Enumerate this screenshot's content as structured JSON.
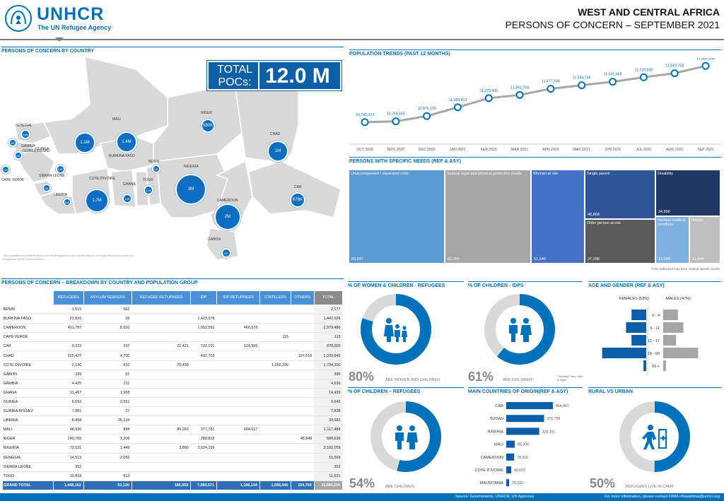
{
  "header": {
    "org_name": "UNHCR",
    "org_tagline": "The UN Refugee Agency",
    "region": "WEST AND CENTRAL AFRICA",
    "subtitle": "PERSONS OF CONCERN – SEPTEMBER 2021"
  },
  "map": {
    "section_title": "PERSONS OF CONCERN BY COUNTRY",
    "total_label": "TOTAL POCs:",
    "total_value": "12.0 M",
    "disclaimer": "The boundaries and names shown and the designations used on this map do not imply official endorsement or acceptance by the United Nations.",
    "countries": [
      {
        "name": "SENEGAL",
        "bubble": "16K"
      },
      {
        "name": "GAMBIA",
        "bubble": "5K"
      },
      {
        "name": "GUINEA BISSAU",
        "bubble": "8K"
      },
      {
        "name": "CAPE VERDE",
        "bubble": "115"
      },
      {
        "name": "GUINEA",
        "bubble": "10K"
      },
      {
        "name": "SIERRA LEONE",
        "bubble": "0K"
      },
      {
        "name": "LIBERIA",
        "bubble": "35K"
      },
      {
        "name": "MALI",
        "bubble": "1.1M"
      },
      {
        "name": "BURKINA FASO",
        "bubble": "1.4M"
      },
      {
        "name": "COTE D'IVOIRE",
        "bubble": "1.7M"
      },
      {
        "name": "GHANA",
        "bubble": "14K"
      },
      {
        "name": "TOGO",
        "bubble": "12K"
      },
      {
        "name": "BENIN",
        "bubble": "2K"
      },
      {
        "name": "NIGER",
        "bubble": "580K"
      },
      {
        "name": "NIGERIA",
        "bubble": "3M"
      },
      {
        "name": "CHAD",
        "bubble": "1M"
      },
      {
        "name": "CAMEROON",
        "bubble": "2M"
      },
      {
        "name": "CAR",
        "bubble": "878K"
      },
      {
        "name": "GABON",
        "bubble": "0K"
      }
    ]
  },
  "trends": {
    "section_title": "POPULATION TRENDS (PAST 12 MONTHS)",
    "chart_data": {
      "type": "line",
      "categories": [
        "OCT 2020",
        "NOV 2020",
        "DEC 2020",
        "JAN 2021",
        "FEB 2021",
        "MAR 2021",
        "APR 2021",
        "MAY 2021",
        "JUN 2021",
        "JUL 2021",
        "AUG 2021",
        "SEP 2021"
      ],
      "values": [
        10742373,
        10759665,
        10876139,
        11069413,
        11270009,
        11341743,
        11477704,
        11554746,
        11631668,
        11729590,
        11819753,
        11980204
      ],
      "labels": [
        "10,742,373",
        "10,759,665",
        "10,876,139",
        "11,069,413",
        "11,270,009",
        "11,341,743",
        "11,477,704",
        "11,554,746",
        "11,631,668",
        "11,729,590",
        "11,819,753",
        "11,980,204"
      ],
      "title": "",
      "xlabel": "",
      "ylabel": "",
      "grid": false
    }
  },
  "specific_needs": {
    "section_title": "PERSONS WITH SPECIFIC NEEDS (REF & ASY)",
    "footnote": "*One individual may have several specific needs",
    "items": [
      {
        "label": "Unaccompanied / separated child",
        "value": "83,947",
        "color": "#5b9bd5"
      },
      {
        "label": "Serious legal and physical protection needs",
        "value": "82,359",
        "color": "#a6a6a6"
      },
      {
        "label": "Woman at risk",
        "value": "51,540",
        "color": "#4472c4"
      },
      {
        "label": "Single parent",
        "value": "40,868",
        "color": "#2e5597"
      },
      {
        "label": "Disability",
        "value": "34,990",
        "color": "#203864"
      },
      {
        "label": "Older person at risk",
        "value": "27,288",
        "color": "#595959"
      },
      {
        "label": "Serious medical condition",
        "value": "13,045",
        "color": "#7fb0e0"
      },
      {
        "label": "Others",
        "value": "11,044",
        "color": "#bfbfbf"
      }
    ]
  },
  "breakdown": {
    "section_title": "PERSONS OF CONCERN – BREAKDOWN BY COUNTRY AND POPULATION GROUP",
    "columns": [
      "REFUGEES",
      "ASYLUM SEEKERS",
      "REFUGEE RETURNEES",
      "IDP",
      "IDP RETURNEES",
      "STATELESS",
      "OTHERS",
      "TOTAL"
    ],
    "rows": [
      [
        "BENIN",
        "1,515",
        "662",
        "",
        "",
        "",
        "",
        "",
        "2,177"
      ],
      [
        "BURKINA FASO",
        "22,810",
        "38",
        "",
        "1,423,378",
        "",
        "",
        "",
        "1,447,026"
      ],
      [
        "CAMEROON",
        "451,787",
        "8,550",
        "",
        "1,052,591",
        "466,578",
        "",
        "",
        "1,979,486"
      ],
      [
        "CAPE VERDE",
        "",
        "",
        "",
        "",
        "",
        "115",
        "",
        "115"
      ],
      [
        "CAR",
        "9,222",
        "297",
        "21,421",
        "722,101",
        "124,959",
        "",
        "",
        "878,000"
      ],
      [
        "CHAD",
        "525,427",
        "4,700",
        "",
        "402,703",
        "",
        "",
        "107,610",
        "1,039,640"
      ],
      [
        "COTE D'IVOIRE",
        "2,130",
        "410",
        "75,430",
        "",
        "",
        "1,656,330",
        "",
        "1,734,300"
      ],
      [
        "GABON",
        "339",
        "51",
        "",
        "",
        "",
        "",
        "",
        "390"
      ],
      [
        "GAMBIA",
        "4,425",
        "211",
        "",
        "",
        "",
        "",
        "",
        "4,636"
      ],
      [
        "GHANA",
        "12,467",
        "1,968",
        "",
        "",
        "",
        "",
        "",
        "14,435"
      ],
      [
        "GUINEA",
        "6,092",
        "3,551",
        "",
        "",
        "",
        "",
        "",
        "9,643"
      ],
      [
        "GUINEA BISSAU",
        "7,801",
        "37",
        "",
        "",
        "",
        "",
        "",
        "7,838"
      ],
      [
        "LIBERIA",
        "8,458",
        "26,124",
        "",
        "",
        "",
        "",
        "",
        "34,582"
      ],
      [
        "MALI",
        "48,930",
        "894",
        "85,262",
        "377,781",
        "604,617",
        "",
        "",
        "1,117,484"
      ],
      [
        "NIGER",
        "249,765",
        "3,206",
        "",
        "280,818",
        "",
        "",
        "46,849",
        "580,638"
      ],
      [
        "NIGERIA",
        "72,531",
        "1,449",
        "3,880",
        "3,024,199",
        "",
        "",
        "",
        "3,102,059"
      ],
      [
        "SENEGAL",
        "14,513",
        "2,056",
        "",
        "",
        "",
        "",
        "",
        "16,569"
      ],
      [
        "SIERRA LEONE",
        "352",
        "",
        "",
        "",
        "",
        "",
        "",
        "352"
      ],
      [
        "TOGO",
        "10,818",
        "813",
        "",
        "",
        "",
        "",
        "",
        "11,631"
      ]
    ],
    "grand_total": [
      "GRAND TOTAL",
      "1,448,162",
      "53,120",
      "185,993",
      "7,283,571",
      "1,196,154",
      "1,656,445",
      "154,759",
      "11,980,204"
    ]
  },
  "women_children": {
    "section_title": "% OF WOMEN & CHILDREN - REFUGEES",
    "percent": 80,
    "percent_label": "80%",
    "caption": "ARE WOMEN AND CHILDREN"
  },
  "children_idps": {
    "section_title": "% OF CHILDREN - IDPs",
    "percent": 61,
    "percent_label": "61%",
    "caption": "ARE CHILDREN*",
    "note": "* Burkina Faso, Mali & Niger"
  },
  "children_refugees": {
    "section_title": "% OF CHILDREN – REFUGEES",
    "percent": 54,
    "percent_label": "54%",
    "caption": "ARE CHILDREN"
  },
  "age_gender": {
    "section_title": "AGE AND GENDER (REF & ASY)",
    "females_label": "FEMALES (53%)",
    "males_label": "MALES (47%)",
    "chart_data": {
      "type": "bar",
      "categories": [
        "0 - 4",
        "5 - 11",
        "12 - 17",
        "18 - 59",
        "60 +"
      ],
      "series": [
        {
          "name": "FEMALES (53%)",
          "values": [
            8,
            11,
            8,
            24,
            1.5
          ]
        },
        {
          "name": "MALES (47%)",
          "values": [
            8,
            11,
            7,
            19,
            1.5
          ]
        }
      ]
    }
  },
  "origin": {
    "section_title": "MAIN COUNTRIES OF ORIGIN(REF & ASY)",
    "chart_data": {
      "type": "bar",
      "categories": [
        "CAR",
        "SUDAN",
        "NIGERIA",
        "MALI",
        "CAMEROON",
        "COTE D'IVOIRE",
        "MAURITANIA"
      ],
      "values": [
        464461,
        376758,
        328151,
        85306,
        78916,
        49610,
        29223
      ],
      "labels": [
        "464,461",
        "376,758",
        "328,151",
        "85,306",
        "78,916",
        "49,610",
        "29,223"
      ]
    }
  },
  "rural_urban": {
    "section_title": "RURAL VS URBAN",
    "percent": 50,
    "percent_label": "50%",
    "caption": "REFUGEES LIVE IN CAMP"
  },
  "footer": {
    "source": "Source: Governments, UNHCR, UN Agencies",
    "info": "For more information, please contact DIMA rrfwaatdima@unhcr.org"
  },
  "colors": {
    "primary": "#0072bc",
    "dark": "#0b5ea8",
    "light_gray": "#d9d9d9"
  }
}
